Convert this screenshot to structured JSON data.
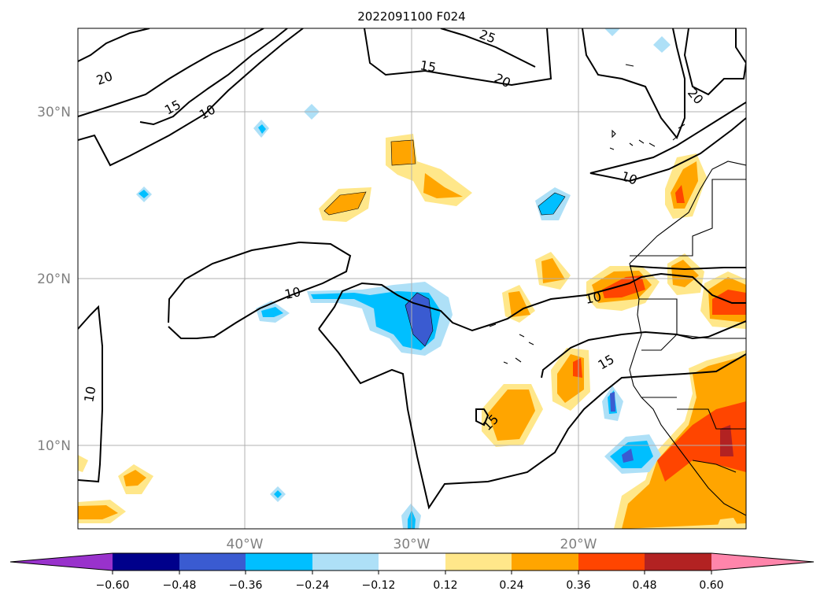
{
  "title": "2022091100 F024",
  "lat_labels": [
    "30°N",
    "20°N",
    "10°N"
  ],
  "lon_labels": [
    "40°W",
    "30°W",
    "20°W"
  ],
  "colorbar": {
    "tick_labels": [
      "−0.60",
      "−0.48",
      "−0.36",
      "−0.24",
      "−0.12",
      "0.12",
      "0.24",
      "0.36",
      "0.48",
      "0.60"
    ],
    "colors": [
      "#9932cc",
      "#00008b",
      "#3a5bd1",
      "#00bfff",
      "#aee0f7",
      "#ffffff",
      "#ffe78a",
      "#ffa500",
      "#ff4500",
      "#b22222",
      "#ff85ab"
    ]
  },
  "contour_labels": [
    "25",
    "15",
    "20",
    "20",
    "20",
    "15",
    "10",
    "10",
    "10",
    "10",
    "15",
    "10",
    "15"
  ],
  "fill_colors": {
    "pos1": "#ffe78a",
    "pos2": "#ffa500",
    "pos3": "#ff4500",
    "pos4": "#b22222",
    "neg1": "#aee0f7",
    "neg2": "#00bfff",
    "neg3": "#3a5bd1"
  }
}
